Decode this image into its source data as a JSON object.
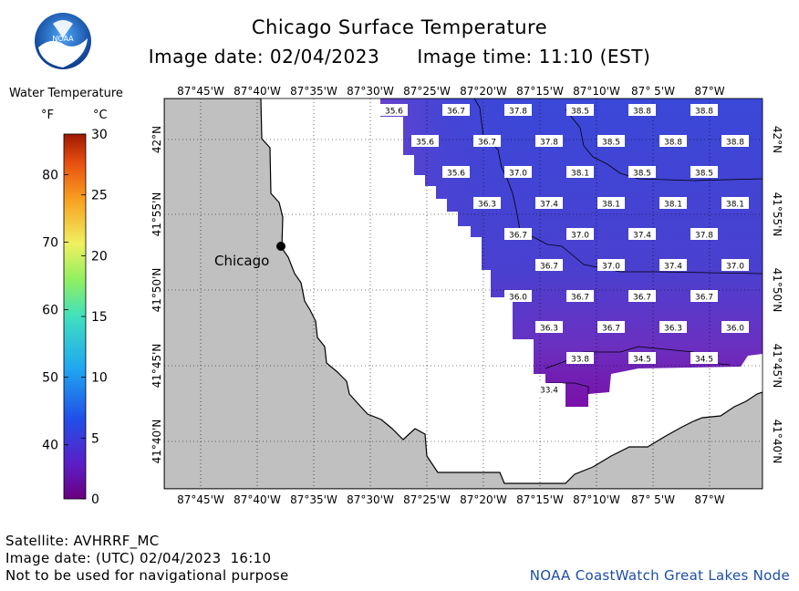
{
  "header": {
    "title": "Chicago Surface Temperature",
    "subtitle": "Image date: 02/04/2023      Image time: 11:10 (EST)",
    "logo_text": "NOAA"
  },
  "legend": {
    "title": "Water Temperature",
    "unit_f": "°F",
    "unit_c": "°C",
    "f_ticks": [
      "80",
      "70",
      "60",
      "50",
      "40"
    ],
    "c_ticks": [
      "30",
      "25",
      "20",
      "15",
      "10",
      "5",
      "0"
    ]
  },
  "map": {
    "lon_labels": [
      "87°45'W",
      "87°40'W",
      "87°35'W",
      "87°30'W",
      "87°25'W",
      "87°20'W",
      "87°15'W",
      "87°10'W",
      "87° 5'W",
      "87°W"
    ],
    "lat_labels": [
      "42°N",
      "41°55'N",
      "41°50'N",
      "41°45'N",
      "41°40'N"
    ],
    "city": "Chicago",
    "colors": {
      "land": "#c0c0c0",
      "water_blue": "#3a48d8",
      "water_purple": "#7a1aa8"
    },
    "sst_values": [
      [
        "35.6",
        "36.7",
        "37.8",
        "38.5",
        "38.8",
        "38.8"
      ],
      [
        "35.6",
        "36.7",
        "37.8",
        "38.5",
        "38.8",
        "38.8"
      ],
      [
        "35.6",
        "37.0",
        "38.1",
        "38.5",
        "38.5"
      ],
      [
        "36.3",
        "37.4",
        "38.1",
        "38.1",
        "38.1"
      ],
      [
        "36.7",
        "37.0",
        "37.4",
        "37.8"
      ],
      [
        "36.7",
        "37.0",
        "37.4",
        "37.0"
      ],
      [
        "36.0",
        "36.7",
        "36.7",
        "36.7"
      ],
      [
        "36.3",
        "36.7",
        "36.3",
        "36.0"
      ],
      [
        "33.8",
        "34.5",
        "34.5"
      ],
      [
        "33.4"
      ]
    ]
  },
  "footer": {
    "satellite": "Satellite: AVHRRF_MC",
    "utc_date": "Image date: (UTC) 02/04/2023  16:10",
    "disclaimer": "Not to be used for navigational purpose",
    "credit": "NOAA CoastWatch Great Lakes Node"
  }
}
